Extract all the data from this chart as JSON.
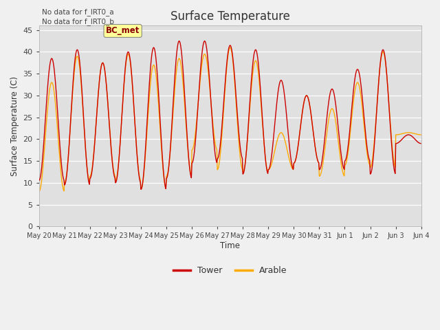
{
  "title": "Surface Temperature",
  "ylabel": "Surface Temperature (C)",
  "xlabel": "Time",
  "yticks": [
    0,
    5,
    10,
    15,
    20,
    25,
    30,
    35,
    40,
    45
  ],
  "ylim": [
    0,
    46
  ],
  "fig_facecolor": "#f0f0f0",
  "plot_bg_color": "#e0e0e0",
  "tower_color": "#cc0000",
  "arable_color": "#ffaa00",
  "legend_labels": [
    "Tower",
    "Arable"
  ],
  "text_annotations": [
    "No data for f_IRT0_a",
    "No data for f_IRT0_b"
  ],
  "box_label": "BC_met",
  "x_tick_labels": [
    "May 20",
    "May 21",
    "May 22",
    "May 23",
    "May 24",
    "May 25",
    "May 26",
    "May 27",
    "May 28",
    "May 29",
    "May 30",
    "May 31",
    "Jun 1",
    "Jun 2",
    "Jun 3",
    "Jun 4"
  ],
  "num_days": 15,
  "pts_per_day": 48,
  "daily_cycles": [
    {
      "min_t": 10.5,
      "max_t": 38.5,
      "min_a": 8.0,
      "max_a": 33.0
    },
    {
      "min_t": 9.5,
      "max_t": 40.5,
      "min_a": 10.0,
      "max_a": 39.0
    },
    {
      "min_t": 11.0,
      "max_t": 37.5,
      "min_a": 11.5,
      "max_a": 37.5
    },
    {
      "min_t": 10.0,
      "max_t": 40.0,
      "min_a": 10.5,
      "max_a": 39.5
    },
    {
      "min_t": 8.5,
      "max_t": 41.0,
      "min_a": 8.5,
      "max_a": 37.0
    },
    {
      "min_t": 11.0,
      "max_t": 42.5,
      "min_a": 11.5,
      "max_a": 38.5
    },
    {
      "min_t": 14.5,
      "max_t": 42.5,
      "min_a": 17.5,
      "max_a": 39.5
    },
    {
      "min_t": 15.5,
      "max_t": 41.5,
      "min_a": 13.0,
      "max_a": 41.0
    },
    {
      "min_t": 12.0,
      "max_t": 40.5,
      "min_a": 12.5,
      "max_a": 38.0
    },
    {
      "min_t": 13.0,
      "max_t": 33.5,
      "min_a": 13.0,
      "max_a": 21.5
    },
    {
      "min_t": 14.5,
      "max_t": 30.0,
      "min_a": 14.5,
      "max_a": 30.0
    },
    {
      "min_t": 13.0,
      "max_t": 31.5,
      "min_a": 11.5,
      "max_a": 27.0
    },
    {
      "min_t": 15.0,
      "max_t": 36.0,
      "min_a": 14.0,
      "max_a": 33.0
    },
    {
      "min_t": 12.0,
      "max_t": 40.5,
      "min_a": 13.5,
      "max_a": 40.0
    },
    {
      "min_t": 19.0,
      "max_t": 21.0,
      "min_a": 21.0,
      "max_a": 21.5
    }
  ]
}
